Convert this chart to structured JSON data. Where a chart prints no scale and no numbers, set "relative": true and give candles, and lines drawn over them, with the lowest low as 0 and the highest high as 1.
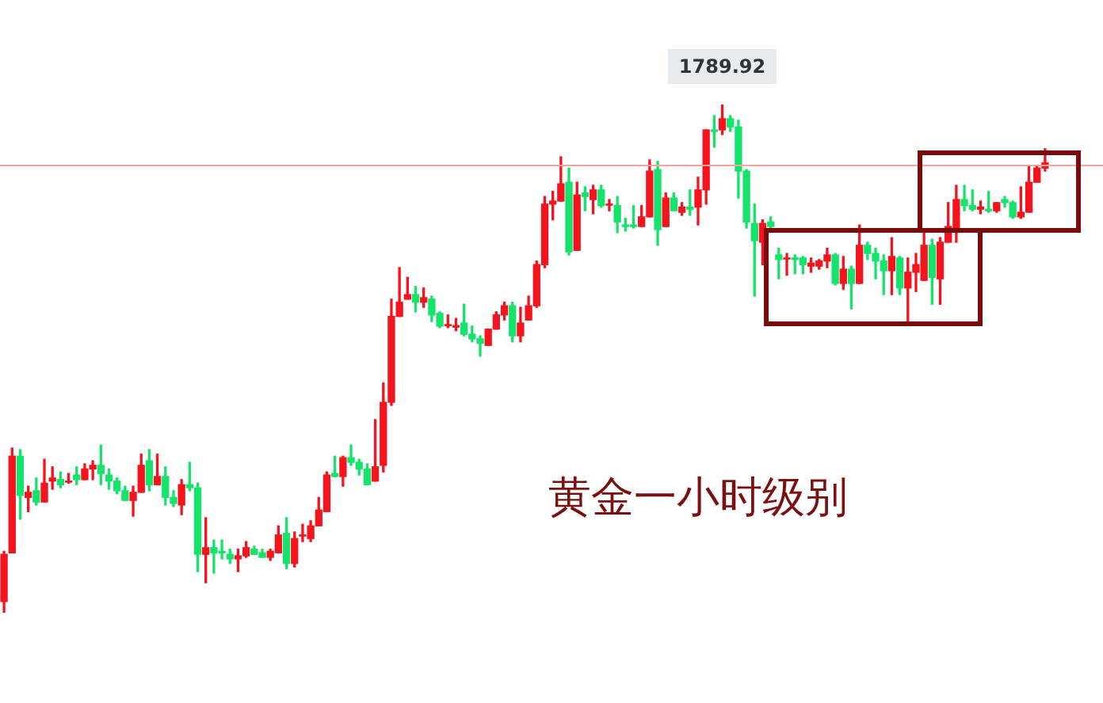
{
  "chart_data": {
    "type": "candlestick",
    "title": "黄金一小时级别",
    "relative": true,
    "categories": [
      null,
      null,
      null,
      null,
      null,
      null,
      null,
      null,
      null,
      null,
      null,
      null,
      null,
      null,
      null,
      null,
      null,
      null,
      null,
      null,
      null,
      null,
      null,
      null,
      null,
      null,
      null,
      null,
      null,
      null,
      null,
      null,
      null,
      null,
      null,
      null,
      null,
      null,
      null,
      null,
      null,
      null,
      null,
      null,
      null,
      null,
      null,
      null,
      null,
      null,
      null,
      null,
      null,
      null,
      null,
      null,
      null,
      null,
      null,
      null,
      null,
      null,
      null,
      null,
      null,
      null,
      null,
      null,
      null,
      null,
      null,
      null,
      null,
      null,
      null,
      null,
      null,
      null,
      null,
      null,
      null,
      null,
      null,
      null,
      null,
      null,
      null,
      null,
      null,
      null,
      null,
      null,
      null,
      null,
      null,
      null,
      null,
      null,
      null,
      null,
      null,
      null,
      null,
      null,
      null,
      null,
      null,
      null,
      null,
      null,
      null,
      null,
      null,
      null,
      null,
      null,
      null,
      null,
      null,
      null,
      null,
      null,
      null,
      null,
      null,
      null,
      null,
      null,
      null,
      null
    ],
    "ohlc": [
      [
        0.022,
        0.121,
        0,
        0.115
      ],
      [
        0.118,
        0.324,
        0.118,
        0.308
      ],
      [
        0.308,
        0.321,
        0.184,
        0.231
      ],
      [
        0.227,
        0.249,
        0.199,
        0.237
      ],
      [
        0.24,
        0.265,
        0.212,
        0.218
      ],
      [
        0.218,
        0.302,
        0.218,
        0.255
      ],
      [
        0.259,
        0.287,
        0.243,
        0.265
      ],
      [
        0.262,
        0.277,
        0.246,
        0.252
      ],
      [
        0.257,
        0.274,
        0.255,
        0.259
      ],
      [
        0.271,
        0.287,
        0.252,
        0.262
      ],
      [
        0.262,
        0.293,
        0.262,
        0.283
      ],
      [
        0.283,
        0.299,
        0.262,
        0.29
      ],
      [
        0.29,
        0.33,
        0.252,
        0.274
      ],
      [
        0.271,
        0.283,
        0.243,
        0.259
      ],
      [
        0.259,
        0.265,
        0.234,
        0.24
      ],
      [
        0.24,
        0.249,
        0.221,
        0.221
      ],
      [
        0.221,
        0.249,
        0.19,
        0.237
      ],
      [
        0.237,
        0.312,
        0.237,
        0.29
      ],
      [
        0.299,
        0.321,
        0.24,
        0.252
      ],
      [
        0.252,
        0.312,
        0.252,
        0.268
      ],
      [
        0.268,
        0.287,
        0.212,
        0.227
      ],
      [
        0.227,
        0.24,
        0.209,
        0.215
      ],
      [
        0.212,
        0.262,
        0.193,
        0.252
      ],
      [
        0.252,
        0.296,
        0.24,
        0.246
      ],
      [
        0.246,
        0.255,
        0.081,
        0.115
      ],
      [
        0.115,
        0.187,
        0.059,
        0.128
      ],
      [
        0.128,
        0.143,
        0.078,
        0.118
      ],
      [
        0.121,
        0.143,
        0.106,
        0.118
      ],
      [
        0.115,
        0.125,
        0.097,
        0.106
      ],
      [
        0.106,
        0.125,
        0.081,
        0.112
      ],
      [
        0.112,
        0.14,
        0.109,
        0.128
      ],
      [
        0.125,
        0.131,
        0.115,
        0.115
      ],
      [
        0.118,
        0.125,
        0.109,
        0.109
      ],
      [
        0.109,
        0.125,
        0.103,
        0.121
      ],
      [
        0.118,
        0.171,
        0.118,
        0.153
      ],
      [
        0.156,
        0.187,
        0.087,
        0.097
      ],
      [
        0.097,
        0.159,
        0.09,
        0.146
      ],
      [
        0.151,
        0.174,
        0.14,
        0.153
      ],
      [
        0.146,
        0.181,
        0.14,
        0.171
      ],
      [
        0.171,
        0.227,
        0.171,
        0.202
      ],
      [
        0.199,
        0.277,
        0.199,
        0.271
      ],
      [
        0.274,
        0.308,
        0.268,
        0.268
      ],
      [
        0.268,
        0.308,
        0.249,
        0.305
      ],
      [
        0.305,
        0.33,
        0.29,
        0.296
      ],
      [
        0.296,
        0.302,
        0.271,
        0.283
      ],
      [
        0.283,
        0.293,
        0.252,
        0.252
      ],
      [
        0.259,
        0.38,
        0.259,
        0.287
      ],
      [
        0.29,
        0.452,
        0.277,
        0.414
      ],
      [
        0.414,
        0.617,
        0.408,
        0.583
      ],
      [
        0.583,
        0.679,
        0.583,
        0.611
      ],
      [
        0.617,
        0.66,
        0.617,
        0.626
      ],
      [
        0.626,
        0.642,
        0.592,
        0.611
      ],
      [
        0.611,
        0.639,
        0.601,
        0.62
      ],
      [
        0.617,
        0.623,
        0.573,
        0.586
      ],
      [
        0.589,
        0.592,
        0.561,
        0.564
      ],
      [
        0.565,
        0.586,
        0.561,
        0.567
      ],
      [
        0.562,
        0.579,
        0.555,
        0.565
      ],
      [
        0.57,
        0.607,
        0.545,
        0.548
      ],
      [
        0.548,
        0.564,
        0.533,
        0.539
      ],
      [
        0.539,
        0.545,
        0.505,
        0.53
      ],
      [
        0.526,
        0.558,
        0.526,
        0.558
      ],
      [
        0.558,
        0.592,
        0.558,
        0.586
      ],
      [
        0.586,
        0.611,
        0.576,
        0.604
      ],
      [
        0.604,
        0.611,
        0.533,
        0.545
      ],
      [
        0.545,
        0.601,
        0.533,
        0.57
      ],
      [
        0.576,
        0.623,
        0.576,
        0.604
      ],
      [
        0.604,
        0.692,
        0.601,
        0.685
      ],
      [
        0.685,
        0.819,
        0.679,
        0.804
      ],
      [
        0.804,
        0.829,
        0.773,
        0.81
      ],
      [
        0.81,
        0.897,
        0.81,
        0.844
      ],
      [
        0.847,
        0.875,
        0.704,
        0.71
      ],
      [
        0.713,
        0.847,
        0.713,
        0.822
      ],
      [
        0.826,
        0.838,
        0.791,
        0.819
      ],
      [
        0.813,
        0.841,
        0.785,
        0.832
      ],
      [
        0.832,
        0.841,
        0.798,
        0.801
      ],
      [
        0.802,
        0.813,
        0.791,
        0.804
      ],
      [
        0.801,
        0.819,
        0.748,
        0.769
      ],
      [
        0.763,
        0.776,
        0.751,
        0.76
      ],
      [
        0.763,
        0.801,
        0.757,
        0.76
      ],
      [
        0.76,
        0.801,
        0.76,
        0.779
      ],
      [
        0.779,
        0.891,
        0.779,
        0.869
      ],
      [
        0.872,
        0.888,
        0.723,
        0.754
      ],
      [
        0.76,
        0.826,
        0.76,
        0.816
      ],
      [
        0.816,
        0.826,
        0.791,
        0.791
      ],
      [
        0.788,
        0.807,
        0.782,
        0.798
      ],
      [
        0.798,
        0.832,
        0.782,
        0.794
      ],
      [
        0.798,
        0.857,
        0.763,
        0.832
      ],
      [
        0.832,
        0.95,
        0.804,
        0.95
      ],
      [
        0.95,
        0.978,
        0.916,
        0.947
      ],
      [
        0.95,
        1,
        0.941,
        0.972
      ],
      [
        0.972,
        0.978,
        0.947,
        0.956
      ],
      [
        0.956,
        0.969,
        0.816,
        0.869
      ],
      [
        0.869,
        0.872,
        0.757,
        0.769
      ],
      [
        0.766,
        0.804,
        0.623,
        0.732
      ],
      [
        0.729,
        0.773,
        0.685,
        0.766
      ],
      [
        0.769,
        0.779,
        0.754,
        0.76
      ],
      [
        0.704,
        0.717,
        0.657,
        0.695
      ],
      [
        0.696,
        0.707,
        0.664,
        0.698
      ],
      [
        0.698,
        0.704,
        0.667,
        0.695
      ],
      [
        0.698,
        0.701,
        0.667,
        0.685
      ],
      [
        0.682,
        0.698,
        0.67,
        0.688
      ],
      [
        0.682,
        0.695,
        0.676,
        0.692
      ],
      [
        0.692,
        0.717,
        0.679,
        0.704
      ],
      [
        0.704,
        0.707,
        0.645,
        0.648
      ],
      [
        0.648,
        0.701,
        0.636,
        0.676
      ],
      [
        0.676,
        0.682,
        0.598,
        0.648
      ],
      [
        0.648,
        0.763,
        0.648,
        0.723
      ],
      [
        0.723,
        0.729,
        0.695,
        0.707
      ],
      [
        0.707,
        0.717,
        0.657,
        0.692
      ],
      [
        0.692,
        0.704,
        0.626,
        0.673
      ],
      [
        0.673,
        0.738,
        0.626,
        0.701
      ],
      [
        0.698,
        0.701,
        0.626,
        0.639
      ],
      [
        0.639,
        0.698,
        0.57,
        0.67
      ],
      [
        0.67,
        0.707,
        0.632,
        0.685
      ],
      [
        0.654,
        0.748,
        0.654,
        0.723
      ],
      [
        0.723,
        0.735,
        0.607,
        0.66
      ],
      [
        0.657,
        0.738,
        0.607,
        0.729
      ],
      [
        0.729,
        0.807,
        0.729,
        0.76
      ],
      [
        0.757,
        0.841,
        0.729,
        0.813
      ],
      [
        0.813,
        0.841,
        0.791,
        0.801
      ],
      [
        0.801,
        0.832,
        0.791,
        0.794
      ],
      [
        0.794,
        0.81,
        0.785,
        0.798
      ],
      [
        0.794,
        0.829,
        0.788,
        0.791
      ],
      [
        0.791,
        0.807,
        0.788,
        0.807
      ],
      [
        0.813,
        0.819,
        0.798,
        0.807
      ],
      [
        0.807,
        0.81,
        0.776,
        0.779
      ],
      [
        0.779,
        0.838,
        0.776,
        0.788
      ],
      [
        0.788,
        0.879,
        0.788,
        0.847
      ],
      [
        0.847,
        0.879,
        0.847,
        0.875
      ],
      [
        0.875,
        0.913,
        0.869,
        0.885
      ]
    ],
    "colors": [
      "#f5141e",
      "#f5141e",
      "#14e36c",
      "#f5141e",
      "#14e36c",
      "#f5141e",
      "#f5141e",
      "#14e36c",
      "#f5141e",
      "#14e36c",
      "#f5141e",
      "#f5141e",
      "#14e36c",
      "#14e36c",
      "#14e36c",
      "#14e36c",
      "#f5141e",
      "#f5141e",
      "#14e36c",
      "#f5141e",
      "#14e36c",
      "#14e36c",
      "#f5141e",
      "#14e36c",
      "#14e36c",
      "#f5141e",
      "#14e36c",
      "#14e36c",
      "#14e36c",
      "#f5141e",
      "#f5141e",
      "#14e36c",
      "#14e36c",
      "#f5141e",
      "#f5141e",
      "#14e36c",
      "#f5141e",
      "#f5141e",
      "#f5141e",
      "#f5141e",
      "#f5141e",
      "#14e36c",
      "#f5141e",
      "#14e36c",
      "#14e36c",
      "#14e36c",
      "#f5141e",
      "#f5141e",
      "#f5141e",
      "#f5141e",
      "#f5141e",
      "#14e36c",
      "#f5141e",
      "#14e36c",
      "#14e36c",
      "#f5141e",
      "#f5141e",
      "#14e36c",
      "#14e36c",
      "#14e36c",
      "#f5141e",
      "#f5141e",
      "#f5141e",
      "#14e36c",
      "#f5141e",
      "#f5141e",
      "#f5141e",
      "#f5141e",
      "#f5141e",
      "#f5141e",
      "#14e36c",
      "#f5141e",
      "#14e36c",
      "#f5141e",
      "#14e36c",
      "#f5141e",
      "#14e36c",
      "#14e36c",
      "#14e36c",
      "#f5141e",
      "#f5141e",
      "#14e36c",
      "#f5141e",
      "#14e36c",
      "#f5141e",
      "#14e36c",
      "#f5141e",
      "#f5141e",
      "#14e36c",
      "#f5141e",
      "#14e36c",
      "#14e36c",
      "#14e36c",
      "#14e36c",
      "#f5141e",
      "#14e36c",
      "#14e36c",
      "#f5141e",
      "#14e36c",
      "#14e36c",
      "#f5141e",
      "#f5141e",
      "#f5141e",
      "#14e36c",
      "#f5141e",
      "#14e36c",
      "#f5141e",
      "#14e36c",
      "#14e36c",
      "#14e36c",
      "#f5141e",
      "#14e36c",
      "#f5141e",
      "#f5141e",
      "#f5141e",
      "#14e36c",
      "#f5141e",
      "#f5141e",
      "#f5141e",
      "#14e36c",
      "#14e36c",
      "#f5141e",
      "#14e36c",
      "#f5141e",
      "#14e36c",
      "#14e36c",
      "#f5141e",
      "#f5141e",
      "#f5141e",
      "#f5141e"
    ],
    "ref_lines": [
      {
        "axis": "y",
        "value": 0.882,
        "color": "#f7a59c"
      }
    ],
    "annotations": [
      {
        "text": "1789.92",
        "y": 1
      }
    ]
  }
}
